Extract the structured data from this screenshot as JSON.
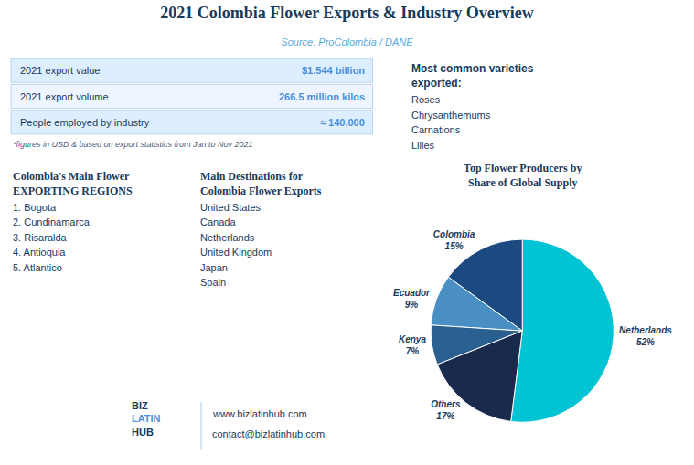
{
  "chart_data": {
    "type": "pie",
    "title": "2021 Colombia Flower Exports & Industry Overview",
    "subtitle": "Source: ProColombia / DANE",
    "categories": [
      "Netherlands",
      "Colombia",
      "Ecuador",
      "Kenya",
      "Others"
    ],
    "values": [
      52,
      15,
      9,
      7,
      17
    ],
    "value_labels": [
      "52%",
      "15%",
      "9%",
      "7%",
      "17%"
    ],
    "data_labels": true,
    "colors": [
      "#00c4d4",
      "#1a4a80",
      "#4a8fc4",
      "#2a6090",
      "#1a2a4c"
    ],
    "annotations": [
      [
        "2021 export value",
        "$1.544 billion",
        "2021 export volume",
        "266.5 million kilos",
        "People employed by industry",
        "≈ 140,000"
      ],
      [
        "*figures in USD & based on export statistics from Jan to Nov 2021"
      ],
      [
        "Most common varieties\nexported:",
        "Roses",
        "Chrysanthemums",
        "Carnations",
        "Lilies"
      ],
      [
        "Colombia's Main Flower\nEXPORTING REGIONS",
        "1. Bogota",
        "2. Cundinamarca",
        "3. Risaralda",
        "4. Antioquia",
        "5. Atlantico"
      ],
      [
        "Main Destinations for\nColombia Flower Exports",
        "United States",
        "Canada",
        "Netherlands",
        "United Kingdom",
        "Japan",
        "Spain"
      ],
      [
        "Top Flower Producers by\nShare of Global Supply"
      ],
      [
        "BIZ",
        "LATIN",
        "HUB"
      ],
      [
        "www.bizlatinhub.com",
        "contact@bizlatinhub.com"
      ]
    ]
  }
}
